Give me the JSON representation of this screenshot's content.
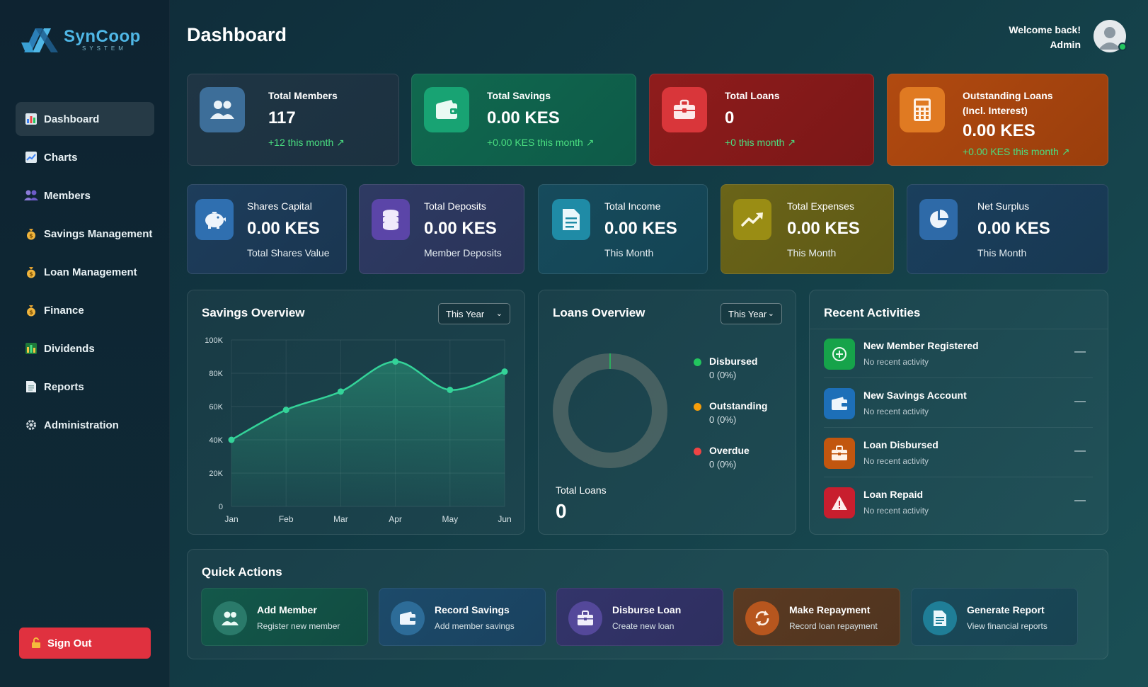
{
  "app": {
    "name": "SynCoop",
    "tagline": "SYSTEM"
  },
  "sidebar": {
    "items": [
      {
        "label": "Dashboard",
        "icon": "bar-chart-icon"
      },
      {
        "label": "Charts",
        "icon": "line-chart-icon"
      },
      {
        "label": "Members",
        "icon": "users-icon"
      },
      {
        "label": "Savings Management",
        "icon": "money-bag-icon"
      },
      {
        "label": "Loan Management",
        "icon": "money-bag-icon"
      },
      {
        "label": "Finance",
        "icon": "money-bag-icon"
      },
      {
        "label": "Dividends",
        "icon": "bar-chart-icon"
      },
      {
        "label": "Reports",
        "icon": "document-icon"
      },
      {
        "label": "Administration",
        "icon": "gear-icon"
      }
    ],
    "signout_label": "Sign Out"
  },
  "header": {
    "title": "Dashboard",
    "welcome_line1": "Welcome back!",
    "welcome_line2": "Admin"
  },
  "stats_top": [
    {
      "label": "Total Members",
      "value": "117",
      "sub": "+12 this month ↗",
      "color": "#1f3544"
    },
    {
      "label": "Total Savings",
      "value": "0.00 KES",
      "sub": "+0.00 KES this month ↗",
      "color": "#10694f"
    },
    {
      "label": "Total Loans",
      "value": "0",
      "sub": "+0 this month ↗",
      "color": "#8f1c1c"
    },
    {
      "label": "Outstanding Loans",
      "label2": "(Incl. Interest)",
      "value": "0.00 KES",
      "sub": "+0.00 KES this month ↗",
      "color": "#b14a10"
    }
  ],
  "stats_second": [
    {
      "label": "Shares Capital",
      "value": "0.00 KES",
      "sub": "Total Shares Value",
      "color": "#1d3d5b"
    },
    {
      "label": "Total Deposits",
      "value": "0.00 KES",
      "sub": "Member Deposits",
      "color": "#2e3a63"
    },
    {
      "label": "Total Income",
      "value": "0.00 KES",
      "sub": "This Month",
      "color": "#164b5c"
    },
    {
      "label": "Total Expenses",
      "value": "0.00 KES",
      "sub": "This Month",
      "color": "#6a6418"
    },
    {
      "label": "Net Surplus",
      "value": "0.00 KES",
      "sub": "This Month",
      "color": "#1a3f5d"
    }
  ],
  "savings_overview": {
    "title": "Savings Overview",
    "period": "This Year"
  },
  "chart_data": {
    "type": "area",
    "categories": [
      "Jan",
      "Feb",
      "Mar",
      "Apr",
      "May",
      "Jun"
    ],
    "values": [
      40000,
      58000,
      69000,
      87000,
      70000,
      81000
    ],
    "ylim": [
      0,
      100000
    ],
    "yticks": [
      "0",
      "20K",
      "40K",
      "60K",
      "80K",
      "100K"
    ],
    "line_color": "#34d399",
    "grid": true
  },
  "loans_overview": {
    "title": "Loans Overview",
    "period": "This Year",
    "total_label": "Total Loans",
    "total_value": "0",
    "legend": [
      {
        "name": "Disbursed",
        "value": "0 (0%)",
        "color": "#22c55e"
      },
      {
        "name": "Outstanding",
        "value": "0 (0%)",
        "color": "#f59e0b"
      },
      {
        "name": "Overdue",
        "value": "0 (0%)",
        "color": "#ef4444"
      }
    ]
  },
  "recent_activities": {
    "title": "Recent Activities",
    "items": [
      {
        "title": "New Member Registered",
        "sub": "No recent activity",
        "dash": "—",
        "color": "#16a34a",
        "icon": "plus-circle-icon"
      },
      {
        "title": "New Savings Account",
        "sub": "No recent activity",
        "dash": "—",
        "color": "#1d6fb8",
        "icon": "wallet-icon"
      },
      {
        "title": "Loan Disbursed",
        "sub": "No recent activity",
        "dash": "—",
        "color": "#c2560f",
        "icon": "briefcase-icon"
      },
      {
        "title": "Loan Repaid",
        "sub": "No recent activity",
        "dash": "—",
        "color": "#c81e2e",
        "icon": "warning-icon"
      }
    ]
  },
  "quick_actions": {
    "title": "Quick Actions",
    "items": [
      {
        "title": "Add Member",
        "sub": "Register new member",
        "color": "#13584a",
        "icon": "users-icon"
      },
      {
        "title": "Record Savings",
        "sub": "Add member savings",
        "color": "#1c4a6a",
        "icon": "wallet-icon"
      },
      {
        "title": "Disburse Loan",
        "sub": "Create new loan",
        "color": "#33346a",
        "icon": "briefcase-icon"
      },
      {
        "title": "Make Repayment",
        "sub": "Record loan repayment",
        "color": "#5a3a22",
        "icon": "refresh-icon"
      },
      {
        "title": "Generate Report",
        "sub": "View financial reports",
        "color": "#1a4a5a",
        "icon": "document-icon"
      }
    ]
  }
}
